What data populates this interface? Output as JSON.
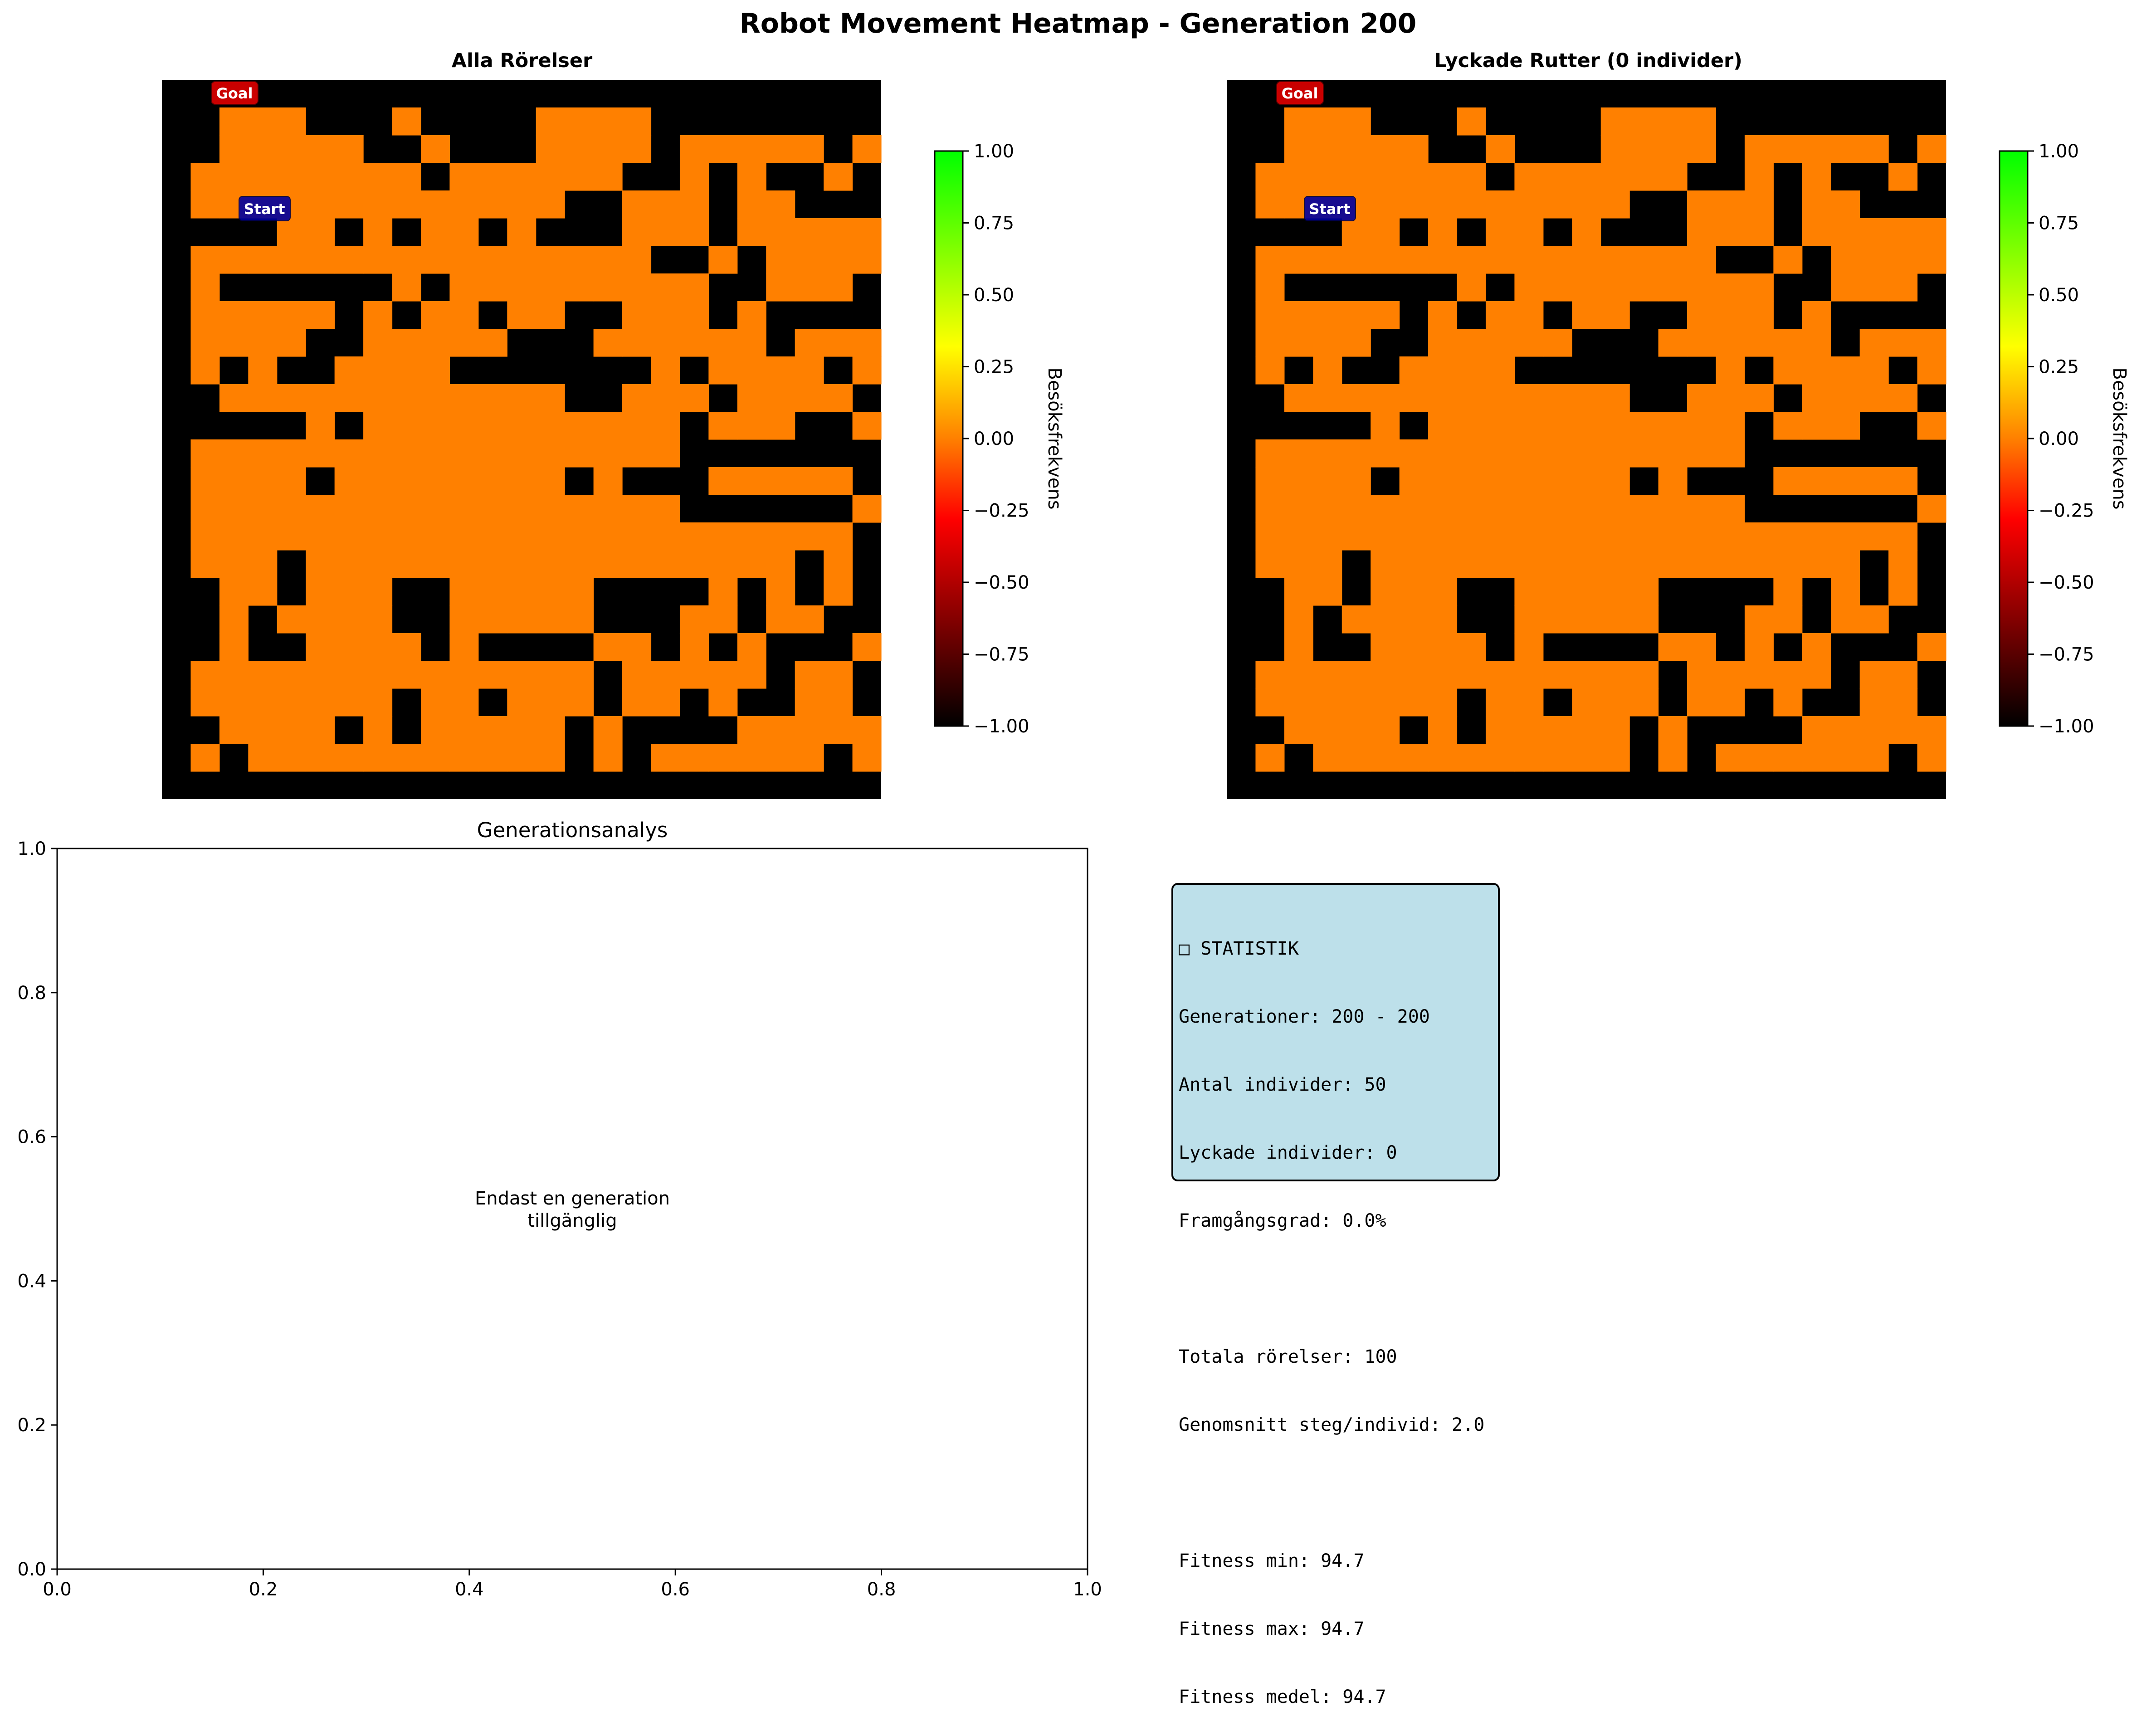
{
  "figure": {
    "title": "Robot Movement Heatmap - Generation 200"
  },
  "colors": {
    "wall": "#000000",
    "visited": "#ff8000",
    "goal_box": "#e00000",
    "start_box": "#0000a0",
    "stats_bg": "#bde0ea"
  },
  "maze": {
    "rows": [
      "0000000000000000000000000",
      "0011100010000111100000000",
      "0011111001000111101111101",
      "0111111110111111001010010",
      "0111111111111100111011000",
      "0000110101101000111011111",
      "0111111111111111100101111",
      "0100000010111111111001110",
      "0111110101101100111010000",
      "0111100111110001111110111",
      "0101001111000000010111101",
      "0011111111111100111011110",
      "0000010111111111110111001",
      "0111111111111111110000000",
      "0111101111111101000111110",
      "0111111111111111110000001",
      "0111111111111111111111110",
      "0111011111111111111111010",
      "0011011100111110000101010",
      "0010111100111110001101100",
      "0010011110100001101010001",
      "0111111111111110111110110",
      "0111111101101110110100110",
      "0011110101111101000011111",
      "0101111111111101011111101",
      "0000000000000000000000000"
    ]
  },
  "panels": {
    "all_moves": {
      "title": "Alla Rörelser",
      "goal_label": "Goal",
      "start_label": "Start"
    },
    "successful": {
      "title": "Lyckade Rutter (0 individer)",
      "goal_label": "Goal",
      "start_label": "Start"
    },
    "colorbar": {
      "label": "Besöksfrekvens",
      "colors": [
        "#000000",
        "#ff0000",
        "#ffff00",
        "#00ff00"
      ],
      "ticks": [
        "−1.00",
        "−0.75",
        "−0.50",
        "−0.25",
        "0.00",
        "0.25",
        "0.50",
        "0.75",
        "1.00"
      ]
    },
    "analysis": {
      "title": "Generationsanalys",
      "message_line1": "Endast en generation",
      "message_line2": "tillgänglig",
      "xticks": [
        "0.0",
        "0.2",
        "0.4",
        "0.6",
        "0.8",
        "1.0"
      ],
      "yticks": [
        "0.0",
        "0.2",
        "0.4",
        "0.6",
        "0.8",
        "1.0"
      ]
    }
  },
  "chart_data": [
    {
      "type": "heatmap",
      "title": "Alla Rörelser",
      "colorbar_label": "Besöksfrekvens",
      "vmin": -1.0,
      "vmax": 1.0,
      "value_wall": -1.0,
      "value_visited": 0.0,
      "grid_size": [
        26,
        25
      ],
      "annotations": [
        "Goal",
        "Start"
      ]
    },
    {
      "type": "heatmap",
      "title": "Lyckade Rutter (0 individer)",
      "colorbar_label": "Besöksfrekvens",
      "vmin": -1.0,
      "vmax": 1.0,
      "value_wall": -1.0,
      "value_visited": 0.0,
      "grid_size": [
        26,
        25
      ],
      "annotations": [
        "Goal",
        "Start"
      ]
    },
    {
      "type": "line",
      "title": "Generationsanalys",
      "xlim": [
        0.0,
        1.0
      ],
      "ylim": [
        0.0,
        1.0
      ],
      "series": [],
      "annotation": "Endast en generation tillgänglig"
    }
  ],
  "stats": {
    "heading": "□ STATISTIK",
    "lines": [
      "Generationer: 200 - 200",
      "Antal individer: 50",
      "Lyckade individer: 0",
      "Framgångsgrad: 0.0%",
      "",
      "Totala rörelser: 100",
      "Genomsnitt steg/individ: 2.0",
      "",
      "Fitness min: 94.7",
      "Fitness max: 94.7",
      "Fitness medel: 94.7"
    ]
  }
}
